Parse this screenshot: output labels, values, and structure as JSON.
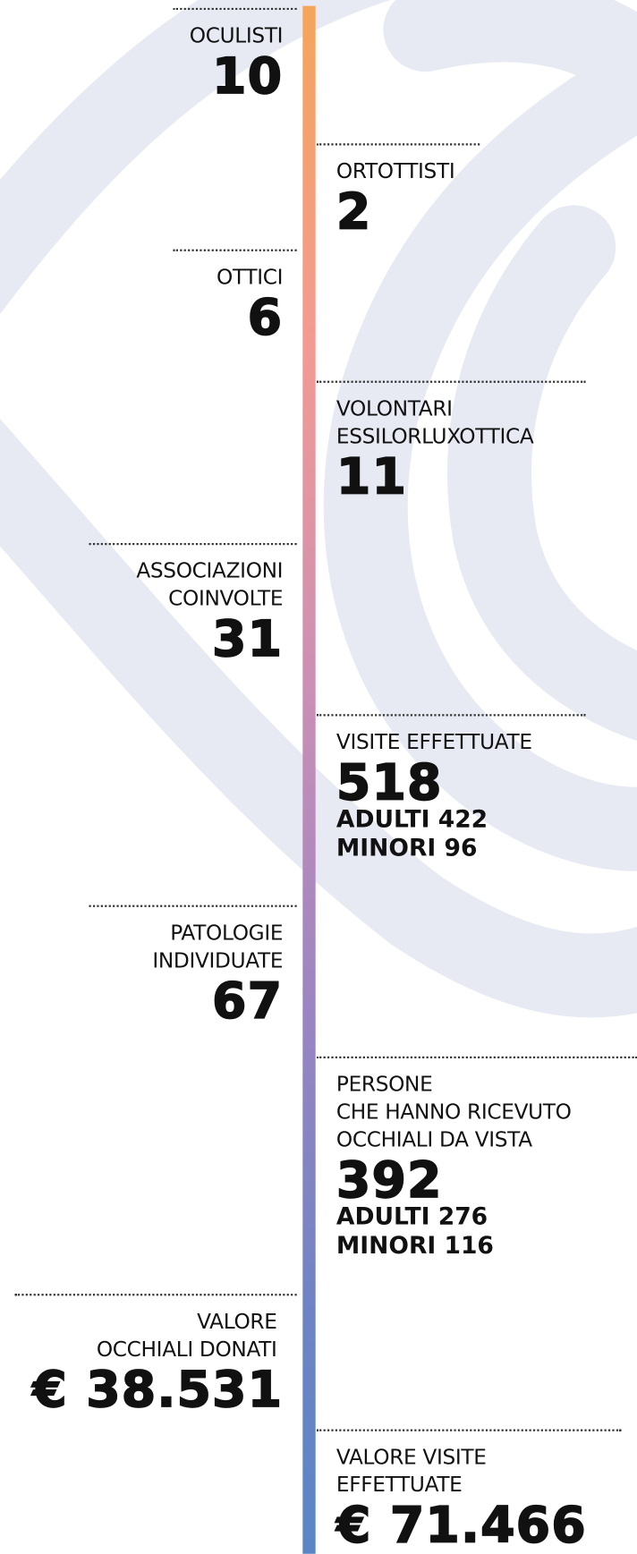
{
  "items": [
    {
      "label": [
        "OCULISTI"
      ],
      "value": "10",
      "details": []
    },
    {
      "label": [
        "ORTOTTISTI"
      ],
      "value": "2",
      "details": []
    },
    {
      "label": [
        "OTTICI"
      ],
      "value": "6",
      "details": []
    },
    {
      "label": [
        "VOLONTARI",
        "ESSILORLUXOTTICA"
      ],
      "value": "11",
      "details": []
    },
    {
      "label": [
        "ASSOCIAZIONI",
        "COINVOLTE"
      ],
      "value": "31",
      "details": []
    },
    {
      "label": [
        "VISITE EFFETTUATE"
      ],
      "value": "518",
      "details": [
        "ADULTI 422",
        "MINORI 96"
      ]
    },
    {
      "label": [
        "PATOLOGIE",
        "INDIVIDUATE"
      ],
      "value": "67",
      "details": []
    },
    {
      "label": [
        "PERSONE",
        "CHE HANNO RICEVUTO",
        "OCCHIALI DA VISTA"
      ],
      "value": "392",
      "details": [
        "ADULTI 276",
        "MINORI 116"
      ]
    },
    {
      "label": [
        "VALORE",
        "OCCHIALI DONATI"
      ],
      "value": "€ 38.531",
      "details": []
    },
    {
      "label": [
        "VALORE VISITE",
        "EFFETTUATE"
      ],
      "value": "€ 71.466",
      "details": []
    }
  ]
}
